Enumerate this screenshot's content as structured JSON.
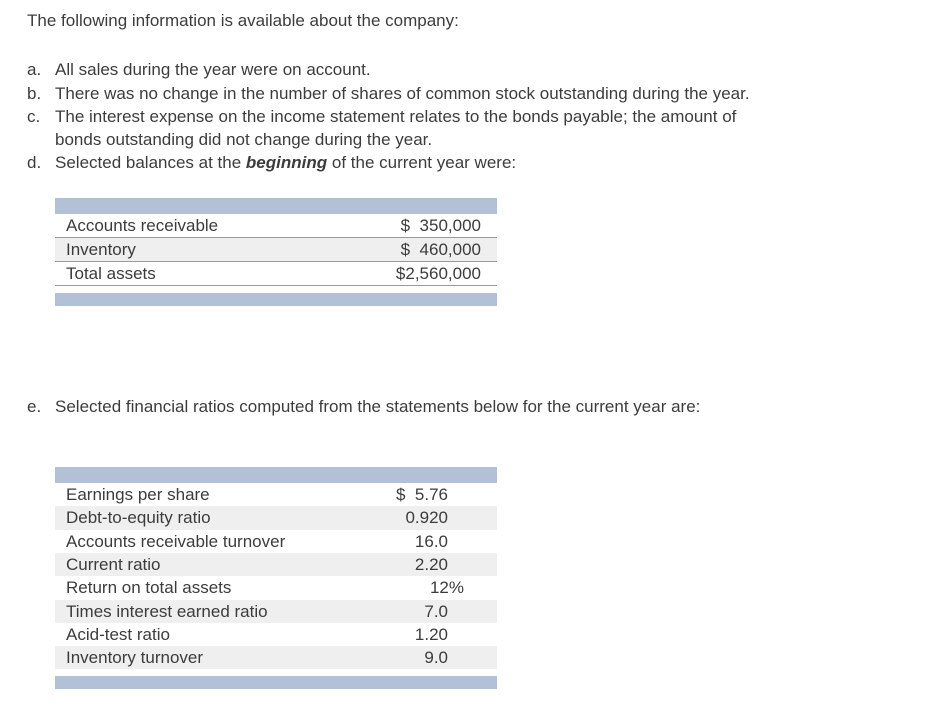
{
  "page": {
    "intro": "The following information is available about the company:",
    "items": [
      {
        "letter": "a.",
        "lines": [
          "All sales during the year were on account."
        ]
      },
      {
        "letter": "b.",
        "lines": [
          "There was no change in the number of shares of common stock outstanding during the year."
        ]
      },
      {
        "letter": "c.",
        "lines": [
          "The interest expense on the income statement relates to the bonds payable; the amount of",
          "bonds outstanding did not change during the year."
        ]
      },
      {
        "letter": "d.",
        "pre": "Selected balances at the ",
        "em": "beginning",
        "post": " of the current year were:"
      },
      {
        "letter": "e.",
        "lines": [
          "Selected financial ratios computed from the statements below for the current year are:"
        ]
      }
    ]
  },
  "balances_table": {
    "rows": [
      {
        "label": "Accounts receivable",
        "value": "$  350,000"
      },
      {
        "label": "Inventory",
        "value": "$  460,000"
      },
      {
        "label": "Total assets",
        "value": "$2,560,000"
      }
    ]
  },
  "ratios_table": {
    "rows": [
      {
        "label": "Earnings per share",
        "value": "$  5.76"
      },
      {
        "label": "Debt-to-equity ratio",
        "value": "0.920"
      },
      {
        "label": "Accounts receivable turnover",
        "value": "16.0"
      },
      {
        "label": "Current ratio",
        "value": "2.20"
      },
      {
        "label": "Return on total assets",
        "value": "12%"
      },
      {
        "label": "Times interest earned ratio",
        "value": "7.0"
      },
      {
        "label": "Acid-test ratio",
        "value": "1.20"
      },
      {
        "label": "Inventory turnover",
        "value": "9.0"
      }
    ]
  },
  "colors": {
    "header_bar": "#b3c1d6",
    "alt_row": "#efefef",
    "text": "#3c3c3c"
  }
}
